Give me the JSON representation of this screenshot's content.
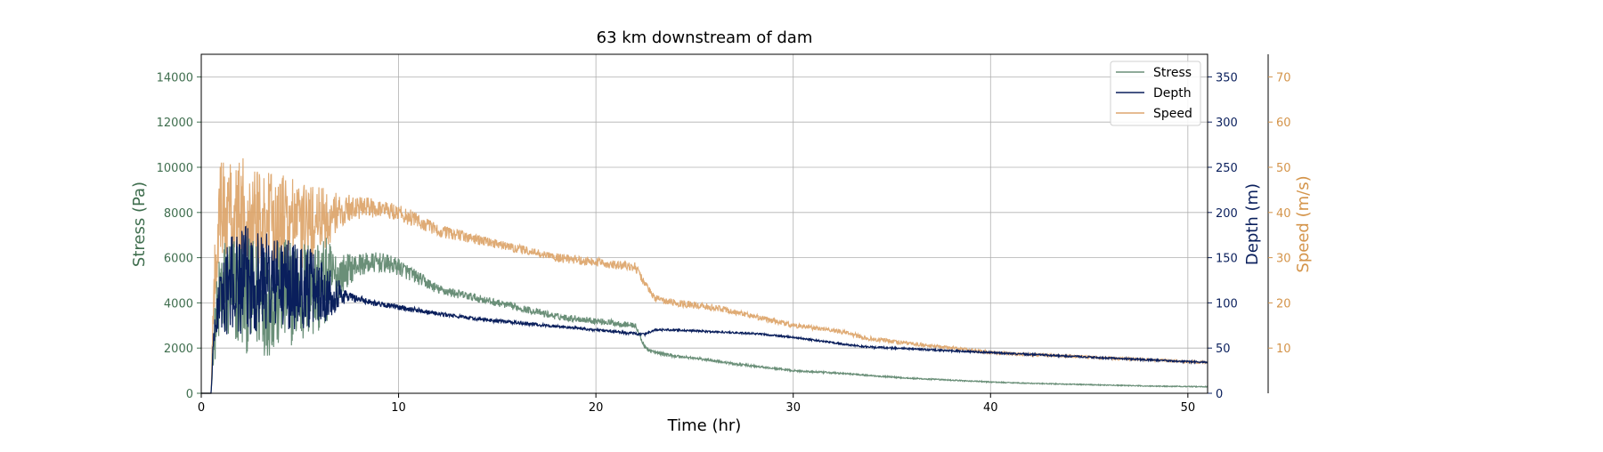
{
  "chart_data": {
    "type": "line",
    "title": "63 km downstream of dam",
    "xlabel": "Time (hr)",
    "xlim": [
      0,
      51
    ],
    "xticks": [
      0,
      10,
      20,
      30,
      40,
      50
    ],
    "grid": true,
    "legend_position": "top-right",
    "axes": [
      {
        "id": "stress",
        "label": "Stress (Pa)",
        "color": "#3f6e4e",
        "ylim": [
          0,
          15000
        ],
        "ticks": [
          0,
          2000,
          4000,
          6000,
          8000,
          10000,
          12000,
          14000
        ],
        "side": "left"
      },
      {
        "id": "depth",
        "label": "Depth (m)",
        "color": "#0a1f5c",
        "ylim": [
          0,
          375
        ],
        "ticks": [
          0,
          50,
          100,
          150,
          200,
          250,
          300,
          350
        ],
        "side": "right"
      },
      {
        "id": "speed",
        "label": "Speed (m/s)",
        "color": "#d4944a",
        "ylim": [
          0,
          75
        ],
        "ticks": [
          10,
          20,
          30,
          40,
          50,
          60,
          70
        ],
        "side": "right-outer"
      }
    ],
    "series": [
      {
        "name": "Stress",
        "axis": "stress",
        "color": "#6a8f78",
        "x": [
          0,
          0.5,
          0.6,
          0.8,
          1,
          1.5,
          2,
          2.5,
          3,
          3.5,
          4,
          4.5,
          5,
          5.5,
          6,
          6.5,
          7,
          7.5,
          8,
          9,
          10,
          11,
          12,
          13,
          14,
          15,
          16,
          17,
          18,
          19,
          20,
          21,
          22,
          22.5,
          23,
          24,
          25,
          26,
          27,
          28,
          29,
          30,
          31,
          32,
          33,
          34,
          35,
          36,
          37,
          38,
          39,
          40,
          41,
          42,
          43,
          44,
          45,
          46,
          47,
          48,
          49,
          50,
          51
        ],
        "y": [
          0,
          0,
          2000,
          3500,
          4500,
          4600,
          4400,
          4300,
          4200,
          4100,
          4300,
          4500,
          4400,
          4600,
          4800,
          5000,
          5200,
          5500,
          5700,
          5800,
          5600,
          5100,
          4600,
          4400,
          4200,
          4000,
          3800,
          3600,
          3400,
          3300,
          3200,
          3100,
          3000,
          2000,
          1800,
          1650,
          1550,
          1450,
          1300,
          1200,
          1100,
          1000,
          950,
          900,
          850,
          780,
          720,
          660,
          620,
          580,
          540,
          500,
          470,
          440,
          420,
          400,
          380,
          360,
          340,
          320,
          310,
          300,
          290
        ],
        "noise": [
          0,
          0,
          800,
          1800,
          2400,
          2600,
          2600,
          2600,
          2500,
          2500,
          2500,
          2400,
          2400,
          2300,
          2300,
          1800,
          1000,
          700,
          500,
          450,
          400,
          300,
          220,
          200,
          180,
          160,
          160,
          150,
          150,
          140,
          140,
          140,
          120,
          100,
          80,
          70,
          60,
          60,
          50,
          50,
          40,
          40,
          40,
          40,
          30,
          30,
          30,
          30,
          30,
          25,
          25,
          25,
          20,
          20,
          20,
          20,
          20,
          20,
          20,
          20,
          20,
          20,
          20
        ]
      },
      {
        "name": "Depth",
        "axis": "depth",
        "color": "#0a1f5c",
        "x": [
          0,
          0.5,
          0.6,
          0.8,
          1,
          1.5,
          2,
          2.5,
          3,
          3.5,
          4,
          4.5,
          5,
          5.5,
          6,
          6.5,
          7,
          7.5,
          8,
          9,
          10,
          11,
          12,
          13,
          14,
          15,
          16,
          17,
          18,
          19,
          20,
          21,
          22,
          22.5,
          23,
          24,
          25,
          26,
          27,
          28,
          29,
          30,
          31,
          32,
          33,
          34,
          35,
          36,
          37,
          38,
          39,
          40,
          41,
          42,
          43,
          44,
          45,
          46,
          47,
          48,
          49,
          50,
          51
        ],
        "y": [
          0,
          0,
          50,
          90,
          105,
          120,
          125,
          125,
          125,
          122,
          122,
          120,
          118,
          116,
          115,
          112,
          110,
          107,
          104,
          99,
          95,
          92,
          88,
          85,
          82,
          80,
          78,
          76,
          74,
          72,
          70,
          68,
          66,
          65,
          70,
          70,
          69,
          68,
          67,
          66,
          64,
          62,
          59,
          56,
          53,
          51,
          50,
          49,
          48,
          47,
          46,
          45,
          44,
          43,
          42,
          41,
          40,
          39,
          38,
          37,
          36,
          35,
          34
        ],
        "noise": [
          0,
          0,
          10,
          25,
          40,
          55,
          60,
          60,
          58,
          55,
          52,
          50,
          48,
          45,
          40,
          30,
          15,
          6,
          4,
          3,
          3,
          2.5,
          2,
          2,
          2,
          2,
          2,
          2,
          1.5,
          1.5,
          1.5,
          1.5,
          1.5,
          1.5,
          1,
          1,
          1,
          1,
          1,
          1,
          1,
          1,
          1,
          1,
          1,
          1,
          1,
          1,
          1,
          1,
          1,
          1,
          1,
          1,
          1,
          1,
          1,
          1,
          1,
          1,
          1,
          1,
          1
        ]
      },
      {
        "name": "Speed",
        "axis": "speed",
        "color": "#dda66e",
        "x": [
          0,
          0.5,
          0.6,
          0.8,
          1,
          1.5,
          2,
          2.5,
          3,
          3.5,
          4,
          4.5,
          5,
          5.5,
          6,
          6.5,
          7,
          7.5,
          8,
          9,
          10,
          11,
          12,
          13,
          14,
          15,
          16,
          17,
          18,
          19,
          20,
          21,
          22,
          22.5,
          23,
          24,
          25,
          26,
          27,
          28,
          29,
          30,
          31,
          32,
          33,
          34,
          35,
          36,
          37,
          38,
          39,
          40,
          41,
          42,
          43,
          44,
          45,
          46,
          47,
          48,
          49,
          50,
          51
        ],
        "y": [
          0,
          0,
          20,
          35,
          40,
          40,
          40,
          40,
          39,
          38,
          38,
          38,
          37,
          37,
          38,
          39,
          40,
          41,
          41,
          41,
          40,
          38,
          36,
          35,
          34,
          33,
          32,
          31,
          30,
          29.5,
          29,
          28.5,
          28,
          24,
          21,
          20,
          19.5,
          19,
          18,
          17,
          16,
          15,
          14.5,
          14,
          13,
          12,
          11.5,
          11,
          10.5,
          10,
          9.5,
          9,
          8.8,
          8.6,
          8.4,
          8.2,
          8,
          7.8,
          7.6,
          7.4,
          7.2,
          7,
          6.8
        ],
        "noise": [
          0,
          0,
          6,
          10,
          12,
          12,
          12,
          12,
          12,
          11,
          11,
          10,
          10,
          9,
          8,
          6,
          4,
          3,
          2.5,
          2,
          2,
          1.8,
          1.5,
          1.2,
          1.2,
          1,
          1,
          1,
          1,
          1,
          1,
          1,
          1,
          1,
          0.8,
          0.8,
          0.8,
          0.8,
          0.6,
          0.6,
          0.6,
          0.5,
          0.5,
          0.5,
          0.5,
          0.5,
          0.5,
          0.4,
          0.4,
          0.4,
          0.4,
          0.4,
          0.4,
          0.3,
          0.3,
          0.3,
          0.3,
          0.3,
          0.3,
          0.3,
          0.3,
          0.3,
          0.3
        ]
      }
    ]
  }
}
